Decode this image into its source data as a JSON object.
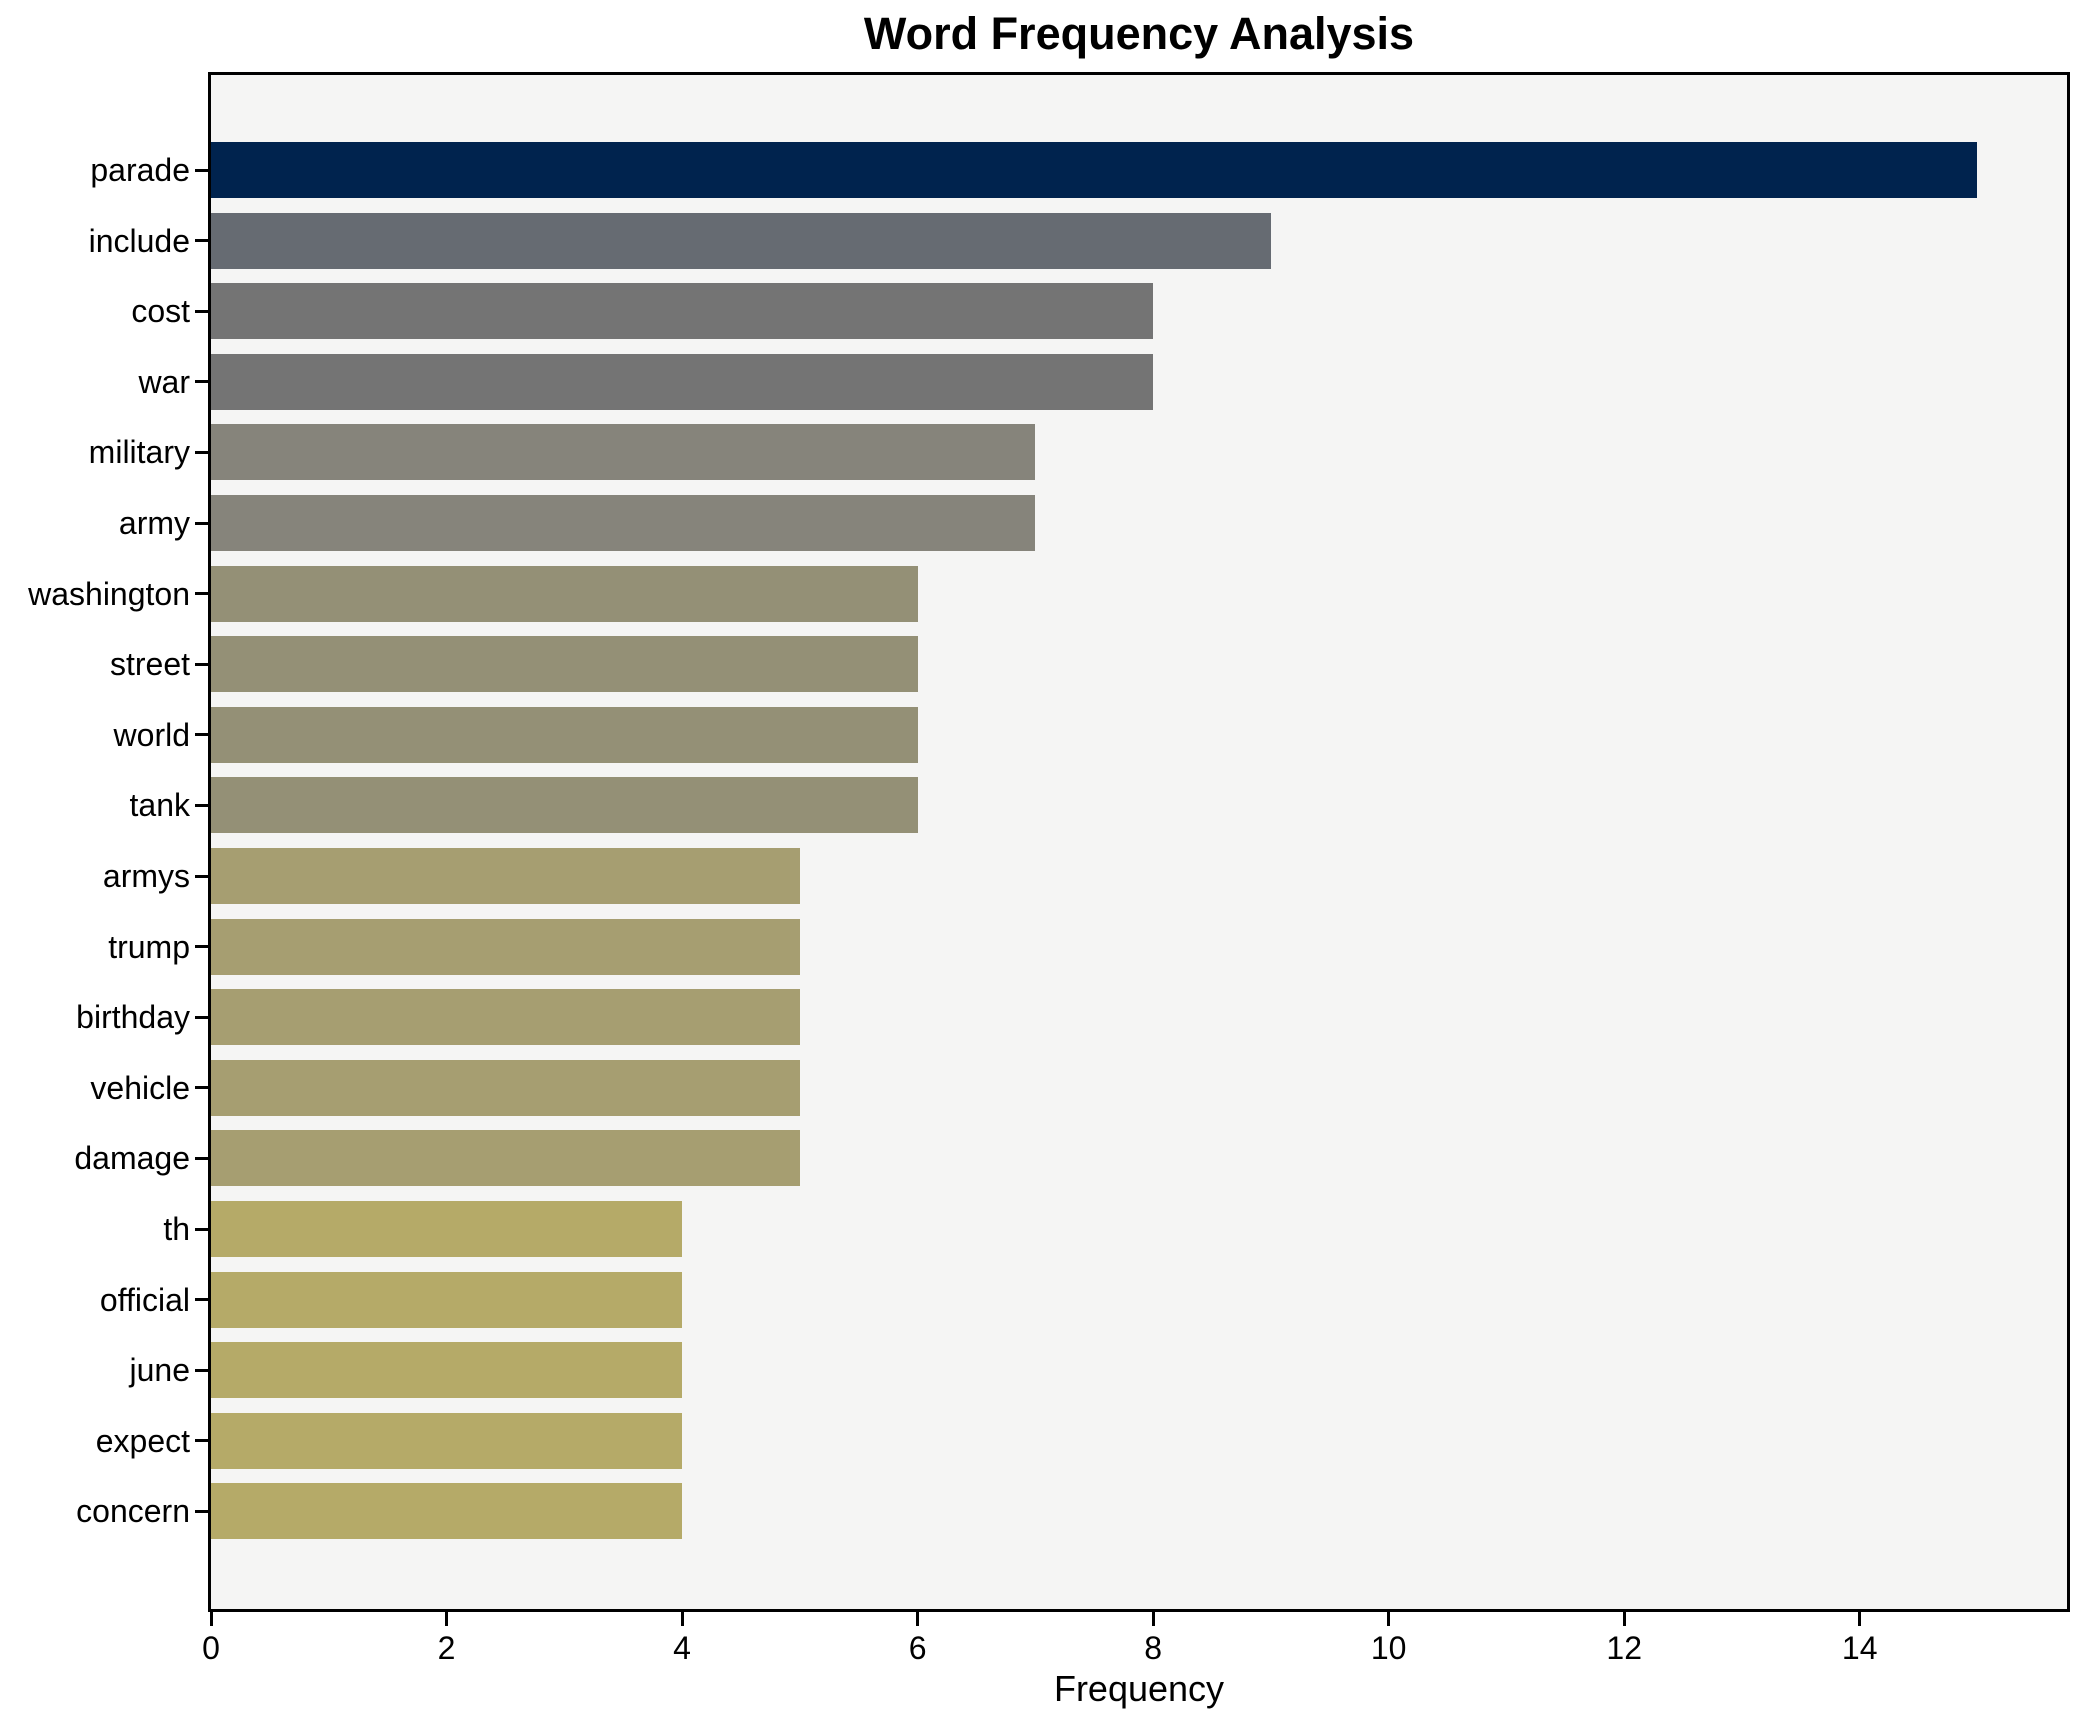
{
  "chart_data": {
    "type": "bar",
    "orientation": "horizontal",
    "title": "Word Frequency Analysis",
    "xlabel": "Frequency",
    "ylabel": "",
    "categories": [
      "parade",
      "include",
      "cost",
      "war",
      "military",
      "army",
      "washington",
      "street",
      "world",
      "tank",
      "armys",
      "trump",
      "birthday",
      "vehicle",
      "damage",
      "th",
      "official",
      "june",
      "expect",
      "concern"
    ],
    "values": [
      15,
      9,
      8,
      8,
      7,
      7,
      6,
      6,
      6,
      6,
      5,
      5,
      5,
      5,
      5,
      4,
      4,
      4,
      4,
      4
    ],
    "bar_colors": [
      "#00234e",
      "#666b72",
      "#747474",
      "#747474",
      "#86847b",
      "#86847b",
      "#949076",
      "#949076",
      "#949076",
      "#949076",
      "#a69e71",
      "#a69e71",
      "#a69e71",
      "#a69e71",
      "#a69e71",
      "#b5aa68",
      "#b5aa68",
      "#b5aa68",
      "#b5aa68",
      "#b5aa68"
    ],
    "xlim": [
      0,
      15.76
    ],
    "xticks": [
      0,
      2,
      4,
      6,
      8,
      10,
      12,
      14
    ],
    "grid": false,
    "legend_position": "none",
    "plot_background": "#f5f5f4",
    "figure_background": "#ffffff",
    "axis_color": "#000000",
    "accent_color": "#00234e"
  }
}
